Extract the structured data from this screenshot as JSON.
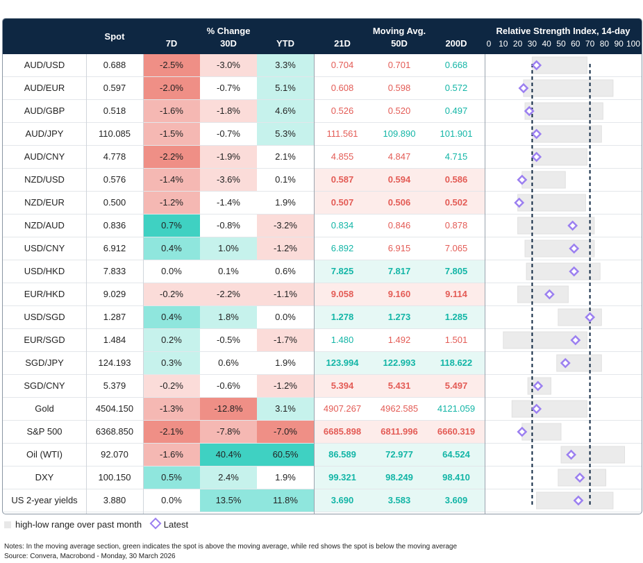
{
  "headers": {
    "spot": "Spot",
    "pct_change": "% Change",
    "d7": "7D",
    "d30": "30D",
    "ytd": "YTD",
    "moving_avg": "Moving Avg.",
    "d21": "21D",
    "d50": "50D",
    "d200": "200D",
    "rsi": "Relative Strength Index, 14-day",
    "rsi_ticks": [
      "0",
      "10",
      "20",
      "30",
      "40",
      "50",
      "60",
      "70",
      "80",
      "90",
      "100"
    ]
  },
  "colors": {
    "neg_strong": "#ef8f86",
    "neg_mid": "#f5b8b3",
    "neg_light": "#fbdcd9",
    "pos_strong": "#3fd1c2",
    "pos_mid": "#8fe6dd",
    "pos_light": "#c6f2ec",
    "red_text": "#e35b55",
    "teal_text": "#12b5a6",
    "header_bg": "#0e2742",
    "diamond": "#9b7ff0",
    "range_bar": "#ebebeb"
  },
  "chart_data": {
    "type": "table",
    "columns": [
      "Spot",
      "7D",
      "30D",
      "YTD",
      "21D",
      "50D",
      "200D",
      "RSI range low",
      "RSI range high",
      "RSI latest"
    ],
    "rsi_threshold_lines": [
      30,
      70
    ],
    "rows": [
      {
        "name": "AUD/USD",
        "spot": "0.688",
        "d7": "-2.5%",
        "d30": "-3.0%",
        "ytd": "3.3%",
        "ma21": "0.704",
        "ma50": "0.701",
        "ma200": "0.668",
        "ma_bold": false,
        "rsi_low": 30,
        "rsi_high": 68,
        "rsi": 33
      },
      {
        "name": "AUD/EUR",
        "spot": "0.597",
        "d7": "-2.0%",
        "d30": "-0.7%",
        "ytd": "5.1%",
        "ma21": "0.608",
        "ma50": "0.598",
        "ma200": "0.572",
        "ma_bold": false,
        "rsi_low": 24,
        "rsi_high": 86,
        "rsi": 24
      },
      {
        "name": "AUD/GBP",
        "spot": "0.518",
        "d7": "-1.6%",
        "d30": "-1.8%",
        "ytd": "4.6%",
        "ma21": "0.526",
        "ma50": "0.520",
        "ma200": "0.497",
        "ma_bold": false,
        "rsi_low": 25,
        "rsi_high": 79,
        "rsi": 28
      },
      {
        "name": "AUD/JPY",
        "spot": "110.085",
        "d7": "-1.5%",
        "d30": "-0.7%",
        "ytd": "5.3%",
        "ma21": "111.561",
        "ma50": "109.890",
        "ma200": "101.901",
        "ma_bold": false,
        "rsi_low": 30,
        "rsi_high": 78,
        "rsi": 33
      },
      {
        "name": "AUD/CNY",
        "spot": "4.778",
        "d7": "-2.2%",
        "d30": "-1.9%",
        "ytd": "2.1%",
        "ma21": "4.855",
        "ma50": "4.847",
        "ma200": "4.715",
        "ma_bold": false,
        "rsi_low": 30,
        "rsi_high": 68,
        "rsi": 33
      },
      {
        "name": "NZD/USD",
        "spot": "0.576",
        "d7": "-1.4%",
        "d30": "-3.6%",
        "ytd": "0.1%",
        "ma21": "0.587",
        "ma50": "0.594",
        "ma200": "0.586",
        "ma_bold": true,
        "rsi_low": 23,
        "rsi_high": 53,
        "rsi": 23
      },
      {
        "name": "NZD/EUR",
        "spot": "0.500",
        "d7": "-1.2%",
        "d30": "-1.4%",
        "ytd": "1.9%",
        "ma21": "0.507",
        "ma50": "0.506",
        "ma200": "0.502",
        "ma_bold": true,
        "rsi_low": 20,
        "rsi_high": 67,
        "rsi": 21
      },
      {
        "name": "NZD/AUD",
        "spot": "0.836",
        "d7": "0.7%",
        "d30": "-0.8%",
        "ytd": "-3.2%",
        "ma21": "0.834",
        "ma50": "0.846",
        "ma200": "0.878",
        "ma_bold": false,
        "rsi_low": 20,
        "rsi_high": 73,
        "rsi": 58
      },
      {
        "name": "USD/CNY",
        "spot": "6.912",
        "d7": "0.4%",
        "d30": "1.0%",
        "ytd": "-1.2%",
        "ma21": "6.892",
        "ma50": "6.915",
        "ma200": "7.065",
        "ma_bold": false,
        "rsi_low": 25,
        "rsi_high": 73,
        "rsi": 59
      },
      {
        "name": "USD/HKD",
        "spot": "7.833",
        "d7": "0.0%",
        "d30": "0.1%",
        "ytd": "0.6%",
        "ma21": "7.825",
        "ma50": "7.817",
        "ma200": "7.805",
        "ma_bold": true,
        "rsi_low": 26,
        "rsi_high": 77,
        "rsi": 59
      },
      {
        "name": "EUR/HKD",
        "spot": "9.029",
        "d7": "-0.2%",
        "d30": "-2.2%",
        "ytd": "-1.1%",
        "ma21": "9.058",
        "ma50": "9.160",
        "ma200": "9.114",
        "ma_bold": true,
        "rsi_low": 20,
        "rsi_high": 55,
        "rsi": 42
      },
      {
        "name": "USD/SGD",
        "spot": "1.287",
        "d7": "0.4%",
        "d30": "1.8%",
        "ytd": "0.0%",
        "ma21": "1.278",
        "ma50": "1.273",
        "ma200": "1.285",
        "ma_bold": true,
        "rsi_low": 48,
        "rsi_high": 78,
        "rsi": 70
      },
      {
        "name": "EUR/SGD",
        "spot": "1.484",
        "d7": "0.2%",
        "d30": "-0.5%",
        "ytd": "-1.7%",
        "ma21": "1.480",
        "ma50": "1.492",
        "ma200": "1.501",
        "ma_bold": false,
        "rsi_low": 10,
        "rsi_high": 68,
        "rsi": 60
      },
      {
        "name": "SGD/JPY",
        "spot": "124.193",
        "d7": "0.3%",
        "d30": "0.6%",
        "ytd": "1.9%",
        "ma21": "123.994",
        "ma50": "122.993",
        "ma200": "118.622",
        "ma_bold": true,
        "rsi_low": 47,
        "rsi_high": 78,
        "rsi": 53
      },
      {
        "name": "SGD/CNY",
        "spot": "5.379",
        "d7": "-0.2%",
        "d30": "-0.6%",
        "ytd": "-1.2%",
        "ma21": "5.394",
        "ma50": "5.431",
        "ma200": "5.497",
        "ma_bold": true,
        "rsi_low": 27,
        "rsi_high": 43,
        "rsi": 34
      },
      {
        "name": "Gold",
        "spot": "4504.150",
        "d7": "-1.3%",
        "d30": "-12.8%",
        "ytd": "3.1%",
        "ma21": "4907.267",
        "ma50": "4962.585",
        "ma200": "4121.059",
        "ma_bold": false,
        "rsi_low": 16,
        "rsi_high": 68,
        "rsi": 33
      },
      {
        "name": "S&P 500",
        "spot": "6368.850",
        "d7": "-2.1%",
        "d30": "-7.8%",
        "ytd": "-7.0%",
        "ma21": "6685.898",
        "ma50": "6811.996",
        "ma200": "6660.319",
        "ma_bold": true,
        "rsi_low": 23,
        "rsi_high": 50,
        "rsi": 23
      },
      {
        "name": "Oil (WTI)",
        "spot": "92.070",
        "d7": "-1.6%",
        "d30": "40.4%",
        "ytd": "60.5%",
        "ma21": "86.589",
        "ma50": "72.977",
        "ma200": "64.524",
        "ma_bold": true,
        "rsi_low": 50,
        "rsi_high": 94,
        "rsi": 57
      },
      {
        "name": "DXY",
        "spot": "100.150",
        "d7": "0.5%",
        "d30": "2.4%",
        "ytd": "1.9%",
        "ma21": "99.321",
        "ma50": "98.249",
        "ma200": "98.410",
        "ma_bold": true,
        "rsi_low": 48,
        "rsi_high": 81,
        "rsi": 63
      },
      {
        "name": "US 2-year yields",
        "spot": "3.880",
        "d7": "0.0%",
        "d30": "13.5%",
        "ytd": "11.8%",
        "ma21": "3.690",
        "ma50": "3.583",
        "ma200": "3.609",
        "ma_bold": true,
        "rsi_low": 33,
        "rsi_high": 86,
        "rsi": 62
      }
    ]
  },
  "legend": {
    "range": "high-low range over past month",
    "latest": "Latest"
  },
  "notes": {
    "line1": "Notes: In the moving average section, green indicates the spot is above the moving average, while red shows the spot is below the moving average",
    "line2": "Source: Convera, Macrobond - Monday, 30 March 2026"
  }
}
